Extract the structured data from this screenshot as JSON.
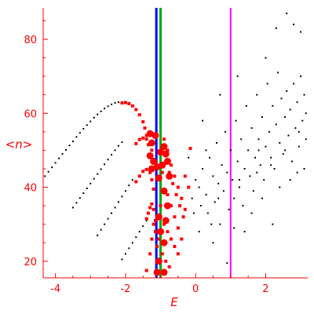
{
  "chart_data": {
    "type": "scatter",
    "title": "",
    "xlabel": "E",
    "ylabel": "<n>",
    "xlim": [
      -4.35,
      3.2
    ],
    "ylim": [
      15.5,
      88.5
    ],
    "x_ticks": [
      -4,
      -2,
      0,
      2
    ],
    "x_tick_labels": [
      "-4",
      "-2",
      "0",
      "2"
    ],
    "y_ticks": [
      20,
      40,
      60,
      80
    ],
    "y_tick_labels": [
      "20",
      "40",
      "60",
      "80"
    ],
    "grid": false,
    "legend": null,
    "colors": {
      "axes": "#ff0000",
      "black_points": "#000000",
      "red_points": "#ff0000",
      "line_blue": "#0000ff",
      "line_green": "#00aa00",
      "line_magenta": "#ff00ff"
    },
    "vertical_lines": [
      {
        "x": -1.12,
        "color": "#0000ff"
      },
      {
        "x": -1.0,
        "color": "#00aa00"
      },
      {
        "x": 1.0,
        "color": "#ff00ff"
      }
    ],
    "series": [
      {
        "color": "#000000",
        "marker": "dot",
        "points": [
          [
            -4.3,
            43.0
          ],
          [
            -4.2,
            44.2
          ],
          [
            -4.1,
            45.4
          ],
          [
            -4.0,
            46.6
          ],
          [
            -3.9,
            47.8
          ],
          [
            -3.8,
            49.0
          ],
          [
            -3.7,
            50.1
          ],
          [
            -3.6,
            51.3
          ],
          [
            -3.5,
            52.4
          ],
          [
            -3.4,
            53.6
          ],
          [
            -3.3,
            54.7
          ],
          [
            -3.2,
            55.8
          ],
          [
            -3.1,
            56.8
          ],
          [
            -3.0,
            57.8
          ],
          [
            -2.9,
            58.8
          ],
          [
            -2.8,
            59.7
          ],
          [
            -2.7,
            60.5
          ],
          [
            -2.6,
            61.3
          ],
          [
            -2.5,
            61.9
          ],
          [
            -2.4,
            62.4
          ],
          [
            -2.3,
            62.8
          ],
          [
            -2.2,
            63.0
          ],
          [
            -3.5,
            34.5
          ],
          [
            -3.4,
            35.8
          ],
          [
            -3.3,
            37.1
          ],
          [
            -3.2,
            38.4
          ],
          [
            -3.1,
            39.7
          ],
          [
            -3.0,
            41.0
          ],
          [
            -2.9,
            42.3
          ],
          [
            -2.8,
            43.6
          ],
          [
            -2.7,
            44.9
          ],
          [
            -2.6,
            46.2
          ],
          [
            -2.5,
            47.5
          ],
          [
            -2.4,
            48.8
          ],
          [
            -2.3,
            50.0
          ],
          [
            -2.2,
            51.2
          ],
          [
            -2.1,
            52.2
          ],
          [
            -2.8,
            27.0
          ],
          [
            -2.7,
            28.5
          ],
          [
            -2.6,
            30.0
          ],
          [
            -2.5,
            31.5
          ],
          [
            -2.4,
            33.0
          ],
          [
            -2.3,
            34.5
          ],
          [
            -2.2,
            36.0
          ],
          [
            -2.1,
            37.5
          ],
          [
            -2.0,
            39.0
          ],
          [
            -1.9,
            40.5
          ],
          [
            -1.8,
            42.0
          ],
          [
            -2.1,
            20.5
          ],
          [
            -2.0,
            22.0
          ],
          [
            -1.9,
            23.5
          ],
          [
            -1.8,
            25.0
          ],
          [
            -1.7,
            26.5
          ],
          [
            -1.6,
            28.0
          ],
          [
            -1.5,
            29.5
          ],
          [
            -1.4,
            31.0
          ],
          [
            -0.1,
            37.0
          ],
          [
            0.0,
            42.0
          ],
          [
            0.1,
            40.0
          ],
          [
            0.2,
            45.0
          ],
          [
            0.3,
            38.0
          ],
          [
            0.35,
            33.0
          ],
          [
            0.4,
            48.0
          ],
          [
            0.5,
            43.0
          ],
          [
            0.55,
            36.0
          ],
          [
            0.6,
            52.0
          ],
          [
            0.65,
            41.0
          ],
          [
            0.7,
            30.0
          ],
          [
            0.75,
            46.0
          ],
          [
            0.8,
            39.0
          ],
          [
            0.85,
            55.0
          ],
          [
            0.9,
            44.0
          ],
          [
            0.95,
            34.0
          ],
          [
            1.0,
            50.0
          ],
          [
            1.05,
            42.0
          ],
          [
            1.1,
            37.0
          ],
          [
            1.15,
            58.0
          ],
          [
            1.2,
            47.0
          ],
          [
            1.25,
            40.0
          ],
          [
            1.3,
            53.0
          ],
          [
            1.35,
            35.0
          ],
          [
            1.4,
            45.0
          ],
          [
            1.45,
            62.0
          ],
          [
            1.5,
            50.0
          ],
          [
            1.55,
            43.0
          ],
          [
            1.6,
            56.0
          ],
          [
            1.65,
            39.0
          ],
          [
            1.7,
            48.0
          ],
          [
            1.75,
            65.0
          ],
          [
            1.8,
            53.0
          ],
          [
            1.85,
            46.0
          ],
          [
            1.9,
            59.0
          ],
          [
            1.95,
            42.0
          ],
          [
            2.0,
            51.0
          ],
          [
            2.05,
            68.0
          ],
          [
            2.1,
            55.0
          ],
          [
            2.15,
            48.0
          ],
          [
            2.2,
            62.0
          ],
          [
            2.25,
            45.0
          ],
          [
            2.3,
            57.0
          ],
          [
            2.35,
            71.0
          ],
          [
            2.4,
            52.0
          ],
          [
            2.45,
            64.0
          ],
          [
            2.5,
            49.0
          ],
          [
            2.55,
            59.0
          ],
          [
            2.6,
            66.0
          ],
          [
            2.65,
            54.0
          ],
          [
            2.7,
            61.0
          ],
          [
            2.75,
            47.0
          ],
          [
            2.8,
            68.0
          ],
          [
            2.85,
            56.0
          ],
          [
            2.9,
            63.0
          ],
          [
            2.95,
            51.0
          ],
          [
            3.0,
            70.0
          ],
          [
            3.05,
            58.0
          ],
          [
            3.1,
            65.0
          ],
          [
            3.15,
            53.0
          ],
          [
            0.2,
            58.0
          ],
          [
            0.7,
            65.0
          ],
          [
            1.2,
            70.0
          ],
          [
            1.8,
            50.0
          ],
          [
            2.3,
            83.0
          ],
          [
            2.6,
            87.0
          ],
          [
            2.8,
            84.0
          ],
          [
            3.0,
            82.0
          ],
          [
            2.0,
            75.0
          ],
          [
            2.2,
            30.0
          ],
          [
            0.9,
            19.5
          ],
          [
            -0.2,
            48.0
          ],
          [
            0.1,
            28.0
          ],
          [
            0.5,
            25.0
          ],
          [
            1.6,
            33.0
          ],
          [
            2.7,
            42.0
          ],
          [
            3.1,
            45.0
          ],
          [
            1.4,
            28.0
          ],
          [
            0.3,
            50.0
          ],
          [
            -0.05,
            33.0
          ],
          [
            0.45,
            30.0
          ],
          [
            1.1,
            29.0
          ],
          [
            1.9,
            37.0
          ],
          [
            2.4,
            40.0
          ],
          [
            2.9,
            44.0
          ],
          [
            3.15,
            60.0
          ],
          [
            0.15,
            35.0
          ],
          [
            0.65,
            37.0
          ],
          [
            1.25,
            42.0
          ],
          [
            1.75,
            44.0
          ],
          [
            2.15,
            46.0
          ],
          [
            2.55,
            50.0
          ],
          [
            2.95,
            55.0
          ]
        ]
      },
      {
        "color": "#ff0000",
        "marker": "square",
        "points": [
          [
            -2.1,
            62.8
          ],
          [
            -2.0,
            62.9
          ],
          [
            -1.9,
            62.6
          ],
          [
            -1.8,
            62.0
          ],
          [
            -1.7,
            61.0
          ],
          [
            -1.6,
            59.6
          ],
          [
            -1.5,
            57.7
          ],
          [
            -1.45,
            56.0
          ],
          [
            -1.4,
            54.0
          ],
          [
            -1.35,
            51.5
          ],
          [
            -1.7,
            51.8
          ],
          [
            -1.6,
            52.9
          ],
          [
            -1.5,
            53.3
          ],
          [
            -1.4,
            53.0
          ],
          [
            -1.3,
            51.9
          ],
          [
            -1.25,
            50.0
          ],
          [
            -1.2,
            47.5
          ],
          [
            -1.7,
            41.5
          ],
          [
            -1.6,
            43.0
          ],
          [
            -1.5,
            44.3
          ],
          [
            -1.4,
            44.8
          ],
          [
            -1.3,
            44.0
          ],
          [
            -1.25,
            42.0
          ],
          [
            -1.2,
            39.5
          ],
          [
            -1.4,
            31.5
          ],
          [
            -1.35,
            33.0
          ],
          [
            -1.3,
            34.5
          ],
          [
            -1.25,
            35.5
          ],
          [
            -1.2,
            34.0
          ],
          [
            -1.15,
            31.0
          ],
          [
            -1.1,
            24.0
          ],
          [
            -1.4,
            17.5
          ],
          [
            -1.3,
            22.0
          ],
          [
            -1.25,
            26.0
          ],
          [
            -1.2,
            30.0
          ],
          [
            -1.15,
            28.0
          ],
          [
            -0.9,
            53.0
          ],
          [
            -0.8,
            50.0
          ],
          [
            -0.7,
            46.0
          ],
          [
            -0.6,
            43.0
          ],
          [
            -0.5,
            40.0
          ],
          [
            -0.4,
            37.0
          ],
          [
            -0.3,
            34.0
          ],
          [
            -0.85,
            47.0
          ],
          [
            -0.75,
            44.0
          ],
          [
            -0.65,
            41.0
          ],
          [
            -0.55,
            38.0
          ],
          [
            -0.45,
            35.0
          ],
          [
            -0.35,
            32.0
          ],
          [
            -0.8,
            38.0
          ],
          [
            -0.7,
            35.0
          ],
          [
            -0.6,
            32.0
          ],
          [
            -0.5,
            29.0
          ],
          [
            -0.4,
            26.0
          ],
          [
            -0.9,
            30.0
          ],
          [
            -0.8,
            28.0
          ],
          [
            -0.7,
            26.0
          ],
          [
            -0.6,
            24.0
          ],
          [
            -0.5,
            22.0
          ],
          [
            -0.95,
            22.0
          ],
          [
            -0.85,
            20.0
          ],
          [
            -0.75,
            18.5
          ],
          [
            -0.15,
            50.5
          ],
          [
            -0.2,
            40.0
          ],
          [
            -0.3,
            43.0
          ],
          [
            -1.0,
            35.0
          ],
          [
            -1.05,
            26.0
          ],
          [
            -0.95,
            44.0
          ]
        ]
      },
      {
        "color": "#ff0000",
        "marker": "circle",
        "points": [
          [
            -1.3,
            54.5
          ],
          [
            -1.25,
            52.0
          ],
          [
            -1.3,
            48.5
          ],
          [
            -1.2,
            47.0
          ],
          [
            -1.25,
            45.0
          ],
          [
            -1.1,
            45.5
          ],
          [
            -1.0,
            49.5
          ],
          [
            -0.9,
            51.0
          ],
          [
            -0.85,
            49.0
          ],
          [
            -0.8,
            47.0
          ],
          [
            -1.05,
            42.5
          ],
          [
            -0.9,
            39.0
          ],
          [
            -0.8,
            35.0
          ],
          [
            -1.05,
            32.0
          ],
          [
            -0.85,
            31.0
          ],
          [
            -1.0,
            28.0
          ],
          [
            -0.9,
            25.0
          ],
          [
            -1.05,
            20.0
          ],
          [
            -1.1,
            17.0
          ],
          [
            -0.9,
            17.0
          ],
          [
            -1.15,
            54.0
          ],
          [
            -0.95,
            46.0
          ],
          [
            -0.75,
            43.0
          ]
        ]
      }
    ]
  }
}
